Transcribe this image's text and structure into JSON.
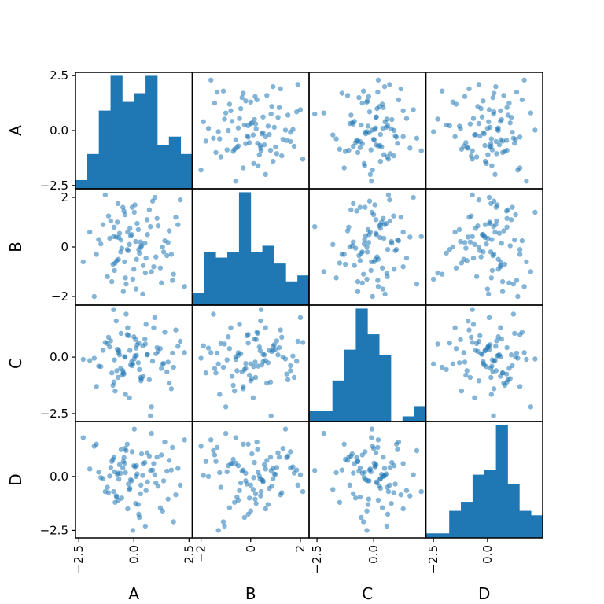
{
  "chart_data": {
    "type": "scatter-matrix",
    "variables": [
      "A",
      "B",
      "C",
      "D"
    ],
    "colors": {
      "marks": "#1f77b4",
      "frame": "#000000"
    },
    "grid": false,
    "ranges": {
      "A": [
        -2.65,
        2.65
      ],
      "B": [
        -2.35,
        2.35
      ],
      "C": [
        -2.85,
        2.3
      ],
      "D": [
        -2.85,
        2.55
      ]
    },
    "ticks": {
      "A": [
        -2.5,
        0.0,
        2.5
      ],
      "B": [
        -2,
        0,
        2
      ],
      "C": [
        -2.5,
        0.0
      ],
      "D": [
        -2.5,
        0.0
      ]
    },
    "tick_labels": {
      "A": [
        "−2.5",
        "0.0",
        "2.5"
      ],
      "B": [
        "−2",
        "0",
        "2"
      ],
      "C": [
        "−2.5",
        "0.0"
      ],
      "D": [
        "−2.5",
        "0.0"
      ]
    },
    "histograms": {
      "A": {
        "counts": [
          1,
          4,
          9,
          13,
          10,
          11,
          13,
          5,
          6,
          4
        ]
      },
      "B": {
        "counts": [
          2,
          9,
          8,
          9,
          19,
          9,
          10,
          7,
          4,
          5
        ]
      },
      "C": {
        "counts": [
          2,
          2,
          8,
          14,
          22,
          17,
          13,
          0,
          1,
          3
        ]
      },
      "D": {
        "counts": [
          1,
          1,
          6,
          8,
          14,
          15,
          25,
          12,
          6,
          5
        ]
      }
    },
    "samples": {
      "A": [
        -1.6,
        -1.2,
        -0.9,
        -0.7,
        -0.5,
        -0.3,
        -0.1,
        0.1,
        0.3,
        0.6,
        0.9,
        1.3,
        1.7,
        2.1,
        -2.3,
        -1.4,
        -1.0,
        -0.8,
        -0.6,
        -0.4,
        -0.2,
        0.0,
        0.2,
        0.4,
        0.7,
        1.0,
        1.4,
        1.8,
        -2.0,
        -1.3,
        -0.95,
        -0.75,
        -0.55,
        -0.35,
        -0.15,
        0.05,
        0.25,
        0.5,
        0.8,
        1.1,
        1.5,
        1.9,
        -1.8,
        -1.1,
        -0.85,
        -0.65,
        -0.45,
        -0.25,
        -0.05,
        0.15,
        0.35,
        0.55,
        0.85,
        1.2,
        1.6,
        2.3,
        -1.5,
        -1.05,
        -0.78,
        -0.58,
        -0.38,
        -0.18,
        0.02,
        0.22,
        0.42,
        0.62,
        0.95,
        1.25,
        1.55,
        2.0,
        -1.7,
        -1.15,
        -0.88,
        -0.68,
        -0.48,
        -0.28,
        -0.08,
        0.12,
        0.32,
        0.52,
        0.75,
        1.05,
        1.35,
        1.75,
        -0.92,
        -0.72,
        -0.42,
        0.08,
        0.38,
        0.68
      ],
      "B": [
        0.3,
        -1.2,
        0.8,
        -0.5,
        1.6,
        -0.1,
        0.5,
        -1.7,
        0.2,
        1.1,
        -0.8,
        0.0,
        -0.3,
        1.9,
        -0.6,
        0.9,
        -1.4,
        0.4,
        -0.2,
        1.3,
        0.1,
        -0.9,
        0.7,
        -1.9,
        1.5,
        -0.4,
        0.25,
        -1.1,
        0.6,
        2.1,
        -0.7,
        1.0,
        -0.05,
        -1.5,
        0.45,
        1.7,
        -0.25,
        0.15,
        -1.0,
        0.85,
        -0.35,
        1.2,
        -2.0,
        0.35,
        -0.65,
        0.55,
        1.45,
        -0.15,
        -1.3,
        0.95,
        0.05,
        -0.45,
        1.85,
        -0.85,
        0.65,
        -1.6,
        0.12,
        1.05,
        -0.55,
        0.28,
        -1.25,
        0.75,
        1.4,
        -0.1,
        -0.75,
        0.5,
        2.0,
        -1.45,
        0.18,
        0.9,
        -0.3,
        1.25,
        -0.95,
        0.38,
        -1.8,
        0.6,
        1.6,
        -0.5,
        0.0,
        -1.05,
        0.82,
        1.15,
        -0.2,
        -1.35,
        0.42,
        1.75,
        -0.6,
        0.22
      ],
      "C": [
        -0.4,
        0.6,
        -1.1,
        0.2,
        -0.6,
        1.0,
        -0.2,
        0.4,
        -0.9,
        0.1,
        1.3,
        -0.3,
        -1.4,
        0.7,
        -0.1,
        0.3,
        -0.7,
        1.6,
        -0.5,
        0.0,
        -1.8,
        0.9,
        -0.25,
        0.5,
        -1.0,
        0.15,
        1.1,
        -0.45,
        -0.15,
        0.65,
        -1.25,
        0.35,
        -0.8,
        1.9,
        -0.35,
        0.05,
        -0.55,
        0.8,
        -2.2,
        0.25,
        -0.65,
        1.2,
        -0.05,
        0.45,
        -1.5,
        0.1,
        -0.75,
        0.95,
        -0.3,
        0.55,
        -0.95,
        1.45,
        -0.18,
        0.38,
        -1.15,
        0.2,
        -0.42,
        0.72,
        -0.6,
        1.05,
        -1.65,
        0.3,
        -0.08,
        0.62,
        -0.85,
        0.12,
        1.75,
        -0.5,
        -0.22,
        0.48,
        -1.3,
        0.88,
        -0.12,
        0.28,
        -0.7,
        1.3,
        -0.38,
        0.08,
        -1.05,
        0.58,
        -2.6,
        0.42,
        -0.28,
        0.18,
        2.1,
        -0.9,
        0.02,
        0.78
      ],
      "D": [
        0.2,
        -0.5,
        0.9,
        -1.1,
        0.4,
        1.5,
        -0.2,
        0.0,
        -0.8,
        1.1,
        0.6,
        -1.6,
        0.3,
        -0.4,
        1.8,
        -0.1,
        0.7,
        -0.9,
        0.15,
        1.3,
        -0.6,
        0.5,
        -1.3,
        0.05,
        0.95,
        -0.3,
        1.6,
        -2.1,
        0.35,
        -0.7,
        0.8,
        0.1,
        -1.0,
        1.2,
        -0.15,
        0.45,
        -1.9,
        0.65,
        2.0,
        -0.45,
        0.25,
        -0.85,
        1.4,
        0.02,
        -1.2,
        0.55,
        0.88,
        -0.35,
        -2.5,
        0.12,
        1.05,
        -0.65,
        0.3,
        -1.45,
        0.75,
        1.7,
        -0.05,
        0.42,
        -0.95,
        1.25,
        0.18,
        -0.55,
        2.2,
        -1.75,
        0.6,
        -0.25,
        0.08,
        1.0,
        -1.05,
        0.38,
        1.5,
        -0.75,
        0.22,
        -0.12,
        0.7,
        -1.5,
        1.15,
        0.5,
        -0.4,
        -2.3,
        0.28,
        0.9,
        -0.2,
        1.35,
        -0.7,
        0.16,
        0.62,
        -1.25
      ]
    }
  }
}
